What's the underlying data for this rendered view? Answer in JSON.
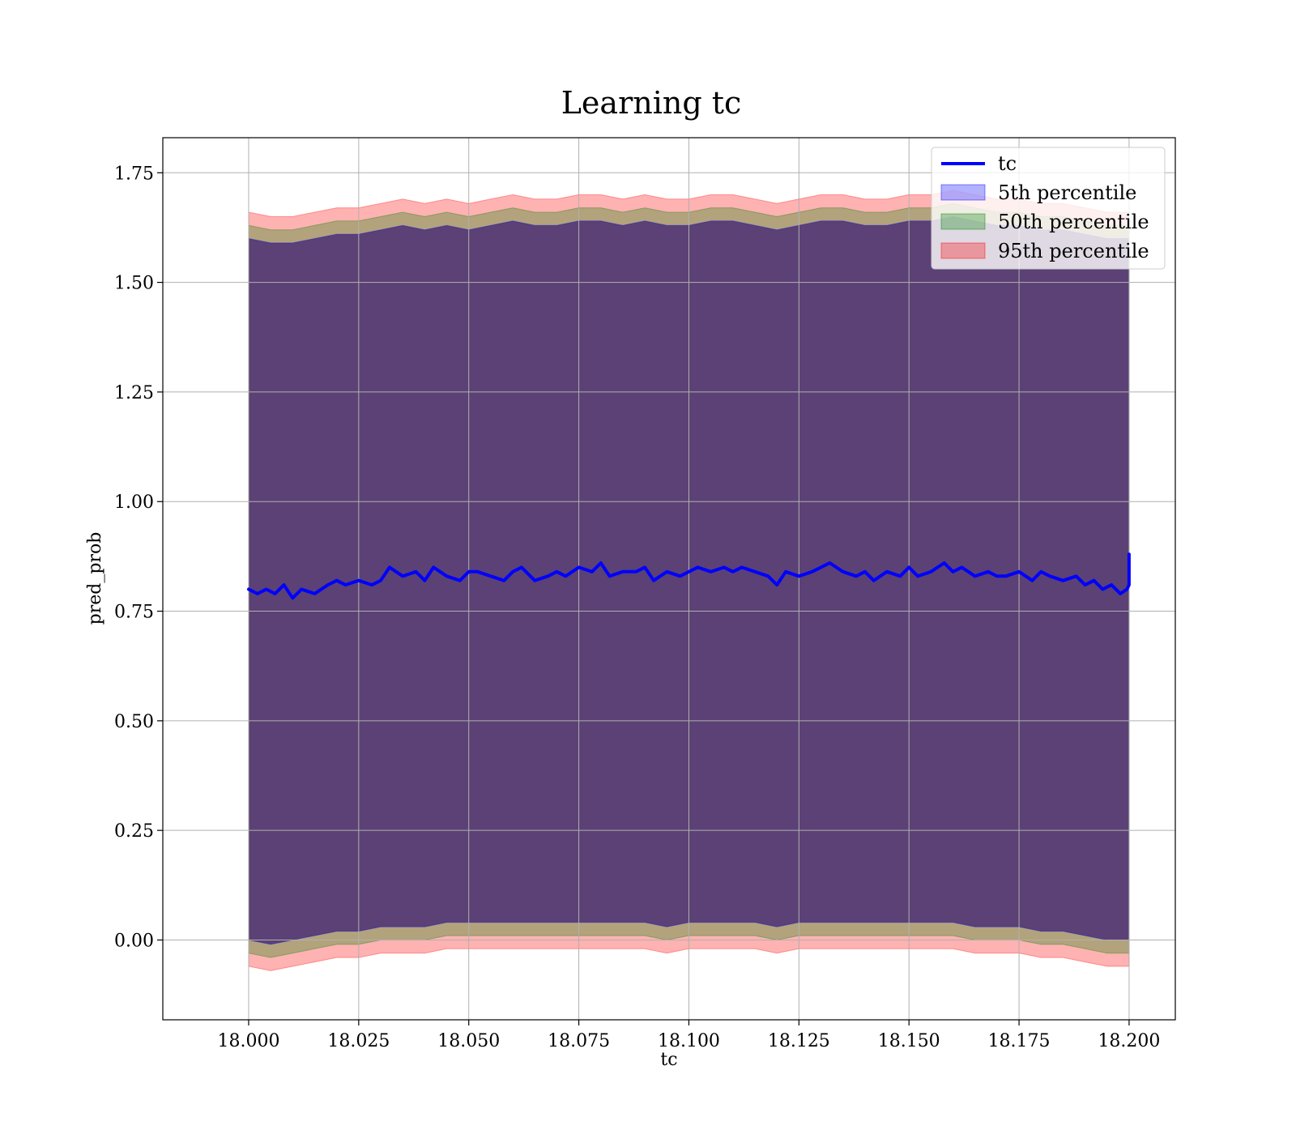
{
  "chart_data": {
    "type": "line",
    "title": "Learning tc",
    "xlabel": "tc",
    "ylabel": "pred_prob",
    "xlim": [
      17.9805,
      18.2105
    ],
    "ylim": [
      -0.182,
      1.83
    ],
    "x_ticks": [
      18.0,
      18.025,
      18.05,
      18.075,
      18.1,
      18.125,
      18.15,
      18.175,
      18.2
    ],
    "x_tick_labels": [
      "18.000",
      "18.025",
      "18.050",
      "18.075",
      "18.100",
      "18.125",
      "18.150",
      "18.175",
      "18.200"
    ],
    "y_ticks": [
      0.0,
      0.25,
      0.5,
      0.75,
      1.0,
      1.25,
      1.5,
      1.75
    ],
    "y_tick_labels": [
      "0.00",
      "0.25",
      "0.50",
      "0.75",
      "1.00",
      "1.25",
      "1.50",
      "1.75"
    ],
    "grid": true,
    "legend_position": "top-right",
    "legend": [
      "tc",
      "5th percentile",
      "50th percentile",
      "95th percentile"
    ],
    "colors": {
      "line": "#0000ff",
      "band_5": "#0000ff",
      "band_50": "#008000",
      "band_95": "#ff0000",
      "core_fill": "#a07078",
      "grid": "#b0b0b0"
    },
    "series": [
      {
        "name": "tc",
        "kind": "line",
        "x": [
          18.0,
          18.002,
          18.004,
          18.006,
          18.008,
          18.01,
          18.012,
          18.015,
          18.018,
          18.02,
          18.022,
          18.025,
          18.028,
          18.03,
          18.032,
          18.035,
          18.038,
          18.04,
          18.042,
          18.045,
          18.048,
          18.05,
          18.052,
          18.055,
          18.058,
          18.06,
          18.062,
          18.065,
          18.068,
          18.07,
          18.072,
          18.075,
          18.078,
          18.08,
          18.082,
          18.085,
          18.088,
          18.09,
          18.092,
          18.095,
          18.098,
          18.1,
          18.102,
          18.105,
          18.108,
          18.11,
          18.112,
          18.115,
          18.118,
          18.12,
          18.122,
          18.125,
          18.128,
          18.13,
          18.132,
          18.135,
          18.138,
          18.14,
          18.142,
          18.145,
          18.148,
          18.15,
          18.152,
          18.155,
          18.158,
          18.16,
          18.162,
          18.165,
          18.168,
          18.17,
          18.172,
          18.175,
          18.178,
          18.18,
          18.182,
          18.185,
          18.188,
          18.19,
          18.192,
          18.194,
          18.196,
          18.198,
          18.1995,
          18.2,
          18.2
        ],
        "y": [
          0.8,
          0.79,
          0.8,
          0.79,
          0.81,
          0.78,
          0.8,
          0.79,
          0.81,
          0.82,
          0.81,
          0.82,
          0.81,
          0.82,
          0.85,
          0.83,
          0.84,
          0.82,
          0.85,
          0.83,
          0.82,
          0.84,
          0.84,
          0.83,
          0.82,
          0.84,
          0.85,
          0.82,
          0.83,
          0.84,
          0.83,
          0.85,
          0.84,
          0.86,
          0.83,
          0.84,
          0.84,
          0.85,
          0.82,
          0.84,
          0.83,
          0.84,
          0.85,
          0.84,
          0.85,
          0.84,
          0.85,
          0.84,
          0.83,
          0.81,
          0.84,
          0.83,
          0.84,
          0.85,
          0.86,
          0.84,
          0.83,
          0.84,
          0.82,
          0.84,
          0.83,
          0.85,
          0.83,
          0.84,
          0.86,
          0.84,
          0.85,
          0.83,
          0.84,
          0.83,
          0.83,
          0.84,
          0.82,
          0.84,
          0.83,
          0.82,
          0.83,
          0.81,
          0.82,
          0.8,
          0.81,
          0.79,
          0.8,
          0.81,
          0.88
        ]
      },
      {
        "name": "95th percentile",
        "kind": "band",
        "x": [
          18.0,
          18.005,
          18.01,
          18.015,
          18.02,
          18.025,
          18.03,
          18.035,
          18.04,
          18.045,
          18.05,
          18.055,
          18.06,
          18.065,
          18.07,
          18.075,
          18.08,
          18.085,
          18.09,
          18.095,
          18.1,
          18.105,
          18.11,
          18.115,
          18.12,
          18.125,
          18.13,
          18.135,
          18.14,
          18.145,
          18.15,
          18.155,
          18.16,
          18.165,
          18.17,
          18.175,
          18.18,
          18.185,
          18.19,
          18.195,
          18.2
        ],
        "upper": [
          1.66,
          1.65,
          1.65,
          1.66,
          1.67,
          1.67,
          1.68,
          1.69,
          1.68,
          1.69,
          1.68,
          1.69,
          1.7,
          1.69,
          1.69,
          1.7,
          1.7,
          1.69,
          1.7,
          1.69,
          1.69,
          1.7,
          1.7,
          1.69,
          1.68,
          1.69,
          1.7,
          1.7,
          1.69,
          1.69,
          1.7,
          1.7,
          1.71,
          1.7,
          1.69,
          1.69,
          1.68,
          1.68,
          1.67,
          1.66,
          1.66
        ],
        "lower": [
          -0.06,
          -0.07,
          -0.06,
          -0.05,
          -0.04,
          -0.04,
          -0.03,
          -0.03,
          -0.03,
          -0.02,
          -0.02,
          -0.02,
          -0.02,
          -0.02,
          -0.02,
          -0.02,
          -0.02,
          -0.02,
          -0.02,
          -0.03,
          -0.02,
          -0.02,
          -0.02,
          -0.02,
          -0.03,
          -0.02,
          -0.02,
          -0.02,
          -0.02,
          -0.02,
          -0.02,
          -0.02,
          -0.02,
          -0.03,
          -0.03,
          -0.03,
          -0.04,
          -0.04,
          -0.05,
          -0.06,
          -0.06
        ]
      },
      {
        "name": "50th percentile",
        "kind": "band",
        "x": [
          18.0,
          18.005,
          18.01,
          18.015,
          18.02,
          18.025,
          18.03,
          18.035,
          18.04,
          18.045,
          18.05,
          18.055,
          18.06,
          18.065,
          18.07,
          18.075,
          18.08,
          18.085,
          18.09,
          18.095,
          18.1,
          18.105,
          18.11,
          18.115,
          18.12,
          18.125,
          18.13,
          18.135,
          18.14,
          18.145,
          18.15,
          18.155,
          18.16,
          18.165,
          18.17,
          18.175,
          18.18,
          18.185,
          18.19,
          18.195,
          18.2
        ],
        "upper": [
          1.63,
          1.62,
          1.62,
          1.63,
          1.64,
          1.64,
          1.65,
          1.66,
          1.65,
          1.66,
          1.65,
          1.66,
          1.67,
          1.66,
          1.66,
          1.67,
          1.67,
          1.66,
          1.67,
          1.66,
          1.66,
          1.67,
          1.67,
          1.66,
          1.65,
          1.66,
          1.67,
          1.67,
          1.66,
          1.66,
          1.67,
          1.67,
          1.68,
          1.67,
          1.66,
          1.66,
          1.65,
          1.65,
          1.64,
          1.63,
          1.63
        ],
        "lower": [
          -0.03,
          -0.04,
          -0.03,
          -0.02,
          -0.01,
          -0.01,
          0.0,
          0.0,
          0.0,
          0.01,
          0.01,
          0.01,
          0.01,
          0.01,
          0.01,
          0.01,
          0.01,
          0.01,
          0.01,
          0.0,
          0.01,
          0.01,
          0.01,
          0.01,
          0.0,
          0.01,
          0.01,
          0.01,
          0.01,
          0.01,
          0.01,
          0.01,
          0.01,
          0.0,
          0.0,
          0.0,
          -0.01,
          -0.01,
          -0.02,
          -0.03,
          -0.03
        ]
      },
      {
        "name": "5th percentile",
        "kind": "band",
        "x": [
          18.0,
          18.005,
          18.01,
          18.015,
          18.02,
          18.025,
          18.03,
          18.035,
          18.04,
          18.045,
          18.05,
          18.055,
          18.06,
          18.065,
          18.07,
          18.075,
          18.08,
          18.085,
          18.09,
          18.095,
          18.1,
          18.105,
          18.11,
          18.115,
          18.12,
          18.125,
          18.13,
          18.135,
          18.14,
          18.145,
          18.15,
          18.155,
          18.16,
          18.165,
          18.17,
          18.175,
          18.18,
          18.185,
          18.19,
          18.195,
          18.2
        ],
        "upper": [
          1.6,
          1.59,
          1.59,
          1.6,
          1.61,
          1.61,
          1.62,
          1.63,
          1.62,
          1.63,
          1.62,
          1.63,
          1.64,
          1.63,
          1.63,
          1.64,
          1.64,
          1.63,
          1.64,
          1.63,
          1.63,
          1.64,
          1.64,
          1.63,
          1.62,
          1.63,
          1.64,
          1.64,
          1.63,
          1.63,
          1.64,
          1.64,
          1.65,
          1.64,
          1.63,
          1.63,
          1.62,
          1.62,
          1.61,
          1.6,
          1.6
        ],
        "lower": [
          0.0,
          -0.01,
          0.0,
          0.01,
          0.02,
          0.02,
          0.03,
          0.03,
          0.03,
          0.04,
          0.04,
          0.04,
          0.04,
          0.04,
          0.04,
          0.04,
          0.04,
          0.04,
          0.04,
          0.03,
          0.04,
          0.04,
          0.04,
          0.04,
          0.03,
          0.04,
          0.04,
          0.04,
          0.04,
          0.04,
          0.04,
          0.04,
          0.04,
          0.03,
          0.03,
          0.03,
          0.02,
          0.02,
          0.01,
          0.0,
          0.0
        ]
      }
    ]
  }
}
